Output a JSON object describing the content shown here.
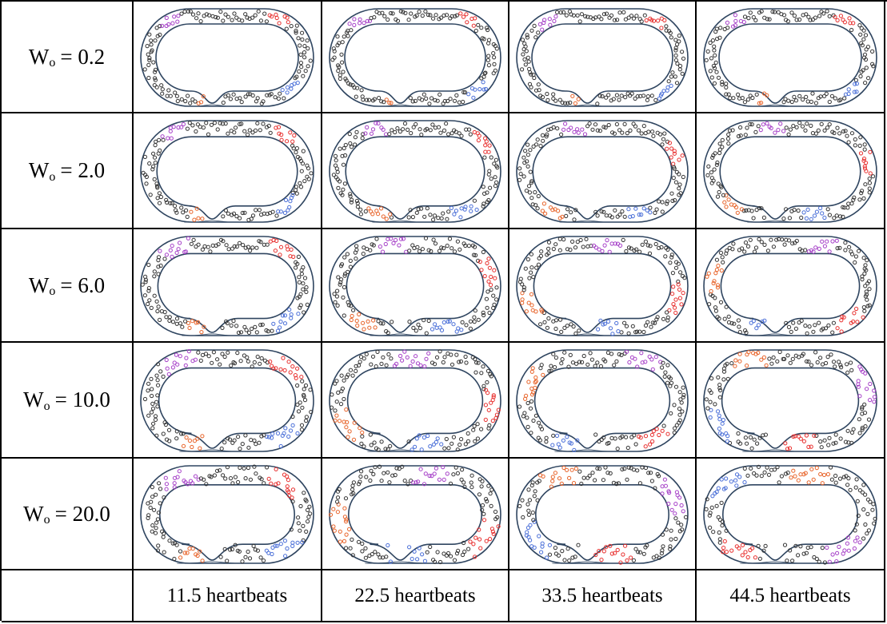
{
  "row_labels": [
    {
      "var": "W",
      "sub": "o",
      "value": "= 0.2"
    },
    {
      "var": "W",
      "sub": "o",
      "value": "= 2.0"
    },
    {
      "var": "W",
      "sub": "o",
      "value": "= 6.0"
    },
    {
      "var": "W",
      "sub": "o",
      "value": "= 10.0"
    },
    {
      "var": "W",
      "sub": "o",
      "value": "= 20.0"
    }
  ],
  "column_labels": [
    "11.5 heartbeats",
    "22.5 heartbeats",
    "33.5 heartbeats",
    "44.5 heartbeats"
  ],
  "colors": {
    "tube": "#2f4560",
    "particle_default": "#333333",
    "particle_red": "#e8302f",
    "particle_blue": "#4a6fd8",
    "particle_purple": "#a640c8",
    "particle_orange": "#e8642a"
  }
}
